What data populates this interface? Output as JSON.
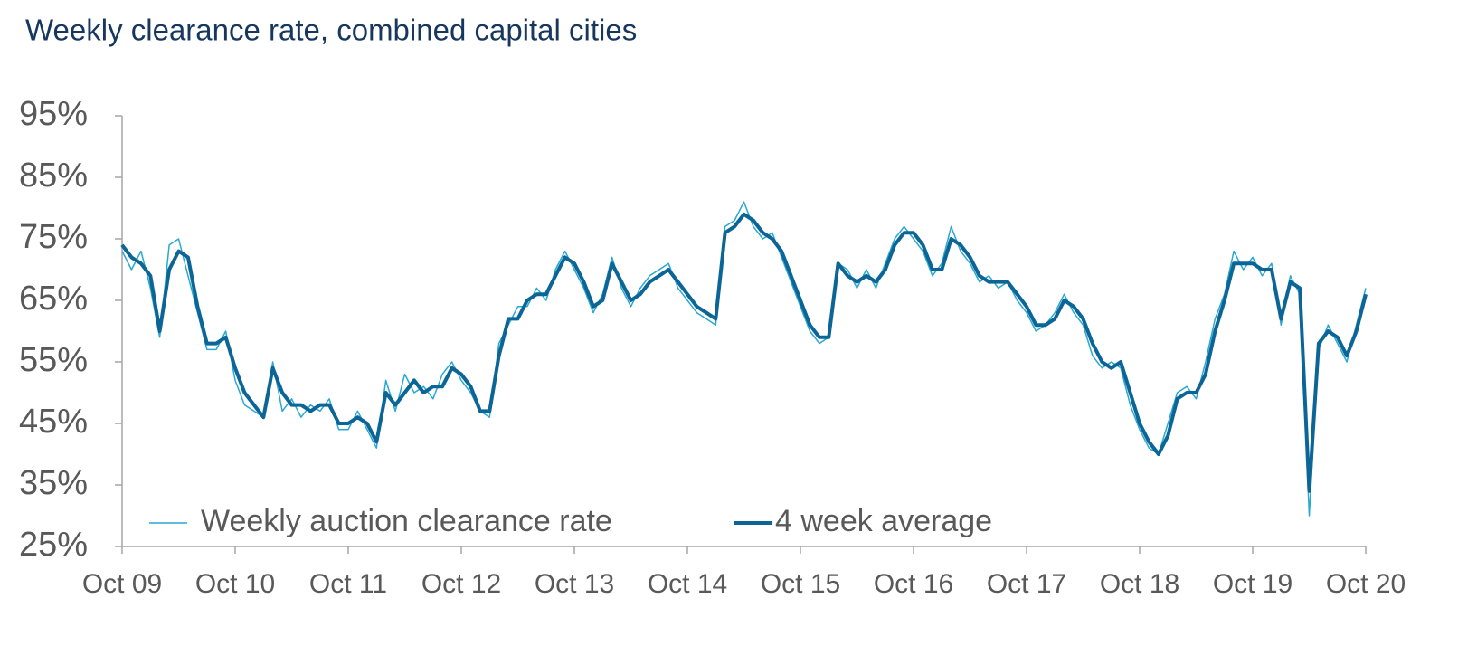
{
  "chart_data": {
    "type": "line",
    "title": "Weekly clearance rate, combined capital cities",
    "x": [
      2009.75,
      2009.833,
      2009.917,
      2010,
      2010.083,
      2010.167,
      2010.25,
      2010.333,
      2010.417,
      2010.5,
      2010.583,
      2010.667,
      2010.75,
      2010.833,
      2010.917,
      2011,
      2011.083,
      2011.167,
      2011.25,
      2011.333,
      2011.417,
      2011.5,
      2011.583,
      2011.667,
      2011.75,
      2011.833,
      2011.917,
      2012,
      2012.083,
      2012.167,
      2012.25,
      2012.333,
      2012.417,
      2012.5,
      2012.583,
      2012.667,
      2012.75,
      2012.833,
      2012.917,
      2013,
      2013.083,
      2013.167,
      2013.25,
      2013.333,
      2013.417,
      2013.5,
      2013.583,
      2013.667,
      2013.75,
      2013.833,
      2013.917,
      2014,
      2014.083,
      2014.167,
      2014.25,
      2014.333,
      2014.417,
      2014.5,
      2014.583,
      2014.667,
      2014.75,
      2014.833,
      2014.917,
      2015,
      2015.083,
      2015.167,
      2015.25,
      2015.333,
      2015.417,
      2015.5,
      2015.583,
      2015.667,
      2015.75,
      2015.833,
      2015.917,
      2016,
      2016.083,
      2016.167,
      2016.25,
      2016.333,
      2016.417,
      2016.5,
      2016.583,
      2016.667,
      2016.75,
      2016.833,
      2016.917,
      2017,
      2017.083,
      2017.167,
      2017.25,
      2017.333,
      2017.417,
      2017.5,
      2017.583,
      2017.667,
      2017.75,
      2017.833,
      2017.917,
      2018,
      2018.083,
      2018.167,
      2018.25,
      2018.333,
      2018.417,
      2018.5,
      2018.583,
      2018.667,
      2018.75,
      2018.833,
      2018.917,
      2019,
      2019.083,
      2019.167,
      2019.25,
      2019.333,
      2019.417,
      2019.5,
      2019.583,
      2019.667,
      2019.75,
      2019.833,
      2019.917,
      2020,
      2020.083,
      2020.167,
      2020.25,
      2020.333,
      2020.417,
      2020.5,
      2020.583,
      2020.667,
      2020.75
    ],
    "series": [
      {
        "name": "Weekly auction clearance rate",
        "color": "#2aa8d0",
        "width": 1.5,
        "values": [
          73,
          70,
          73,
          67,
          59,
          74,
          75,
          69,
          63,
          57,
          57,
          60,
          52,
          48,
          47,
          46,
          55,
          47,
          49,
          46,
          48,
          47,
          49,
          44,
          44,
          47,
          44,
          41,
          52,
          47,
          53,
          50,
          51,
          49,
          53,
          55,
          52,
          50,
          47,
          46,
          58,
          61,
          64,
          64,
          67,
          65,
          70,
          73,
          70,
          67,
          63,
          66,
          72,
          67,
          64,
          67,
          69,
          70,
          71,
          67,
          65,
          63,
          62,
          61,
          77,
          78,
          81,
          77,
          75,
          76,
          72,
          68,
          64,
          60,
          58,
          59,
          71,
          70,
          67,
          70,
          67,
          71,
          75,
          77,
          75,
          73,
          69,
          71,
          77,
          73,
          71,
          68,
          69,
          67,
          68,
          65,
          63,
          60,
          61,
          63,
          66,
          63,
          61,
          56,
          54,
          55,
          54,
          48,
          44,
          41,
          40,
          45,
          50,
          51,
          49,
          55,
          62,
          66,
          73,
          70,
          72,
          69,
          71,
          61,
          69,
          66,
          30,
          57,
          61,
          58,
          55,
          61,
          67
        ]
      },
      {
        "name": "4 week average",
        "color": "#0b6596",
        "width": 4,
        "values": [
          74,
          72,
          71,
          69,
          60,
          70,
          73,
          72,
          64,
          58,
          58,
          59,
          54,
          50,
          48,
          46,
          54,
          50,
          48,
          48,
          47,
          48,
          48,
          45,
          45,
          46,
          45,
          42,
          50,
          48,
          50,
          52,
          50,
          51,
          51,
          54,
          53,
          51,
          47,
          47,
          56,
          62,
          62,
          65,
          66,
          66,
          69,
          72,
          71,
          68,
          64,
          65,
          71,
          68,
          65,
          66,
          68,
          69,
          70,
          68,
          66,
          64,
          63,
          62,
          76,
          77,
          79,
          78,
          76,
          75,
          73,
          69,
          65,
          61,
          59,
          59,
          71,
          69,
          68,
          69,
          68,
          70,
          74,
          76,
          76,
          74,
          70,
          70,
          75,
          74,
          72,
          69,
          68,
          68,
          68,
          66,
          64,
          61,
          61,
          62,
          65,
          64,
          62,
          58,
          55,
          54,
          55,
          50,
          45,
          42,
          40,
          43,
          49,
          50,
          50,
          53,
          60,
          65,
          71,
          71,
          71,
          70,
          70,
          62,
          68,
          67,
          34,
          58,
          60,
          59,
          56,
          60,
          66
        ]
      }
    ],
    "xlim": [
      2009.75,
      2020.75
    ],
    "xticks": [
      {
        "value": 2009.75,
        "label": "Oct 09"
      },
      {
        "value": 2010.75,
        "label": "Oct 10"
      },
      {
        "value": 2011.75,
        "label": "Oct 11"
      },
      {
        "value": 2012.75,
        "label": "Oct 12"
      },
      {
        "value": 2013.75,
        "label": "Oct 13"
      },
      {
        "value": 2014.75,
        "label": "Oct 14"
      },
      {
        "value": 2015.75,
        "label": "Oct 15"
      },
      {
        "value": 2016.75,
        "label": "Oct 16"
      },
      {
        "value": 2017.75,
        "label": "Oct 17"
      },
      {
        "value": 2018.75,
        "label": "Oct 18"
      },
      {
        "value": 2019.75,
        "label": "Oct 19"
      },
      {
        "value": 2020.75,
        "label": "Oct 20"
      }
    ],
    "ylim": [
      25,
      95
    ],
    "yticks": [
      {
        "value": 25,
        "label": "25%"
      },
      {
        "value": 35,
        "label": "35%"
      },
      {
        "value": 45,
        "label": "45%"
      },
      {
        "value": 55,
        "label": "55%"
      },
      {
        "value": 65,
        "label": "65%"
      },
      {
        "value": 75,
        "label": "75%"
      },
      {
        "value": 85,
        "label": "85%"
      },
      {
        "value": 95,
        "label": "95%"
      }
    ],
    "grid": false,
    "legend": "bottom-left"
  }
}
